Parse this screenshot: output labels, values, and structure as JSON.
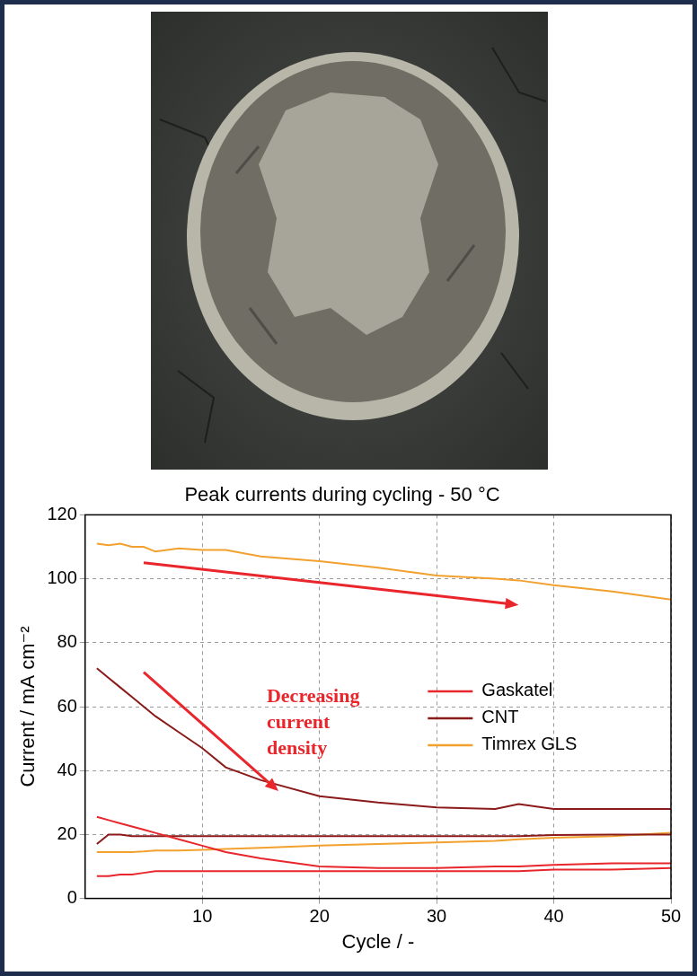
{
  "chart_data": {
    "type": "line",
    "title": "Peak currents during cycling - 50 °C",
    "x_label": "Cycle / -",
    "y_label": "Current / mA cm⁻²",
    "annotations": [
      "Decreasing current density"
    ],
    "x": [
      1,
      2,
      3,
      4,
      5,
      6,
      8,
      10,
      12,
      15,
      20,
      25,
      30,
      35,
      37,
      40,
      45,
      50
    ],
    "series": [
      {
        "name": "Gaskatel",
        "color": "#e8262b",
        "values": [
          25.5,
          24.5,
          23.5,
          22.5,
          21.5,
          20.5,
          18.5,
          16.5,
          14.5,
          12.5,
          10,
          9.5,
          9.5,
          10,
          10,
          10.5,
          11,
          11
        ]
      },
      {
        "name": "Gaskatel",
        "color": "#e8262b",
        "values": [
          7,
          7,
          7.5,
          7.5,
          8,
          8.5,
          8.5,
          8.5,
          8.5,
          8.5,
          8.5,
          8.5,
          8.5,
          8.5,
          8.5,
          9,
          9,
          9.5
        ]
      },
      {
        "name": "CNT",
        "color": "#8b1a1a",
        "values": [
          72,
          69,
          66,
          63,
          60,
          57,
          52,
          47,
          41,
          37,
          32,
          30,
          28.5,
          28,
          29.5,
          28,
          28,
          28
        ]
      },
      {
        "name": "CNT",
        "color": "#8b1a1a",
        "values": [
          17,
          20,
          20,
          19.5,
          19.5,
          19.5,
          19.5,
          19.5,
          19.5,
          19.5,
          19.5,
          19.5,
          19.5,
          19.5,
          19.5,
          19.8,
          20,
          20
        ]
      },
      {
        "name": "Timrex GLS",
        "color": "#f2a02e",
        "values": [
          111,
          110.5,
          111,
          110,
          110,
          108.5,
          109.5,
          109,
          109,
          107,
          105.5,
          103.5,
          101,
          100,
          99.5,
          98,
          96,
          93.5
        ]
      },
      {
        "name": "Timrex GLS",
        "color": "#f2a02e",
        "values": [
          14.5,
          14.5,
          14.5,
          14.5,
          14.7,
          15,
          15,
          15.2,
          15.5,
          15.8,
          16.5,
          17,
          17.5,
          18,
          18.5,
          19,
          19.5,
          20.5
        ]
      }
    ],
    "xlim": [
      0,
      50
    ],
    "xticks": [
      10,
      20,
      30,
      40,
      50
    ],
    "ylim": [
      0,
      120
    ],
    "yticks": [
      0,
      20,
      40,
      60,
      80,
      100,
      120
    ],
    "grid": true,
    "legend": "right"
  }
}
